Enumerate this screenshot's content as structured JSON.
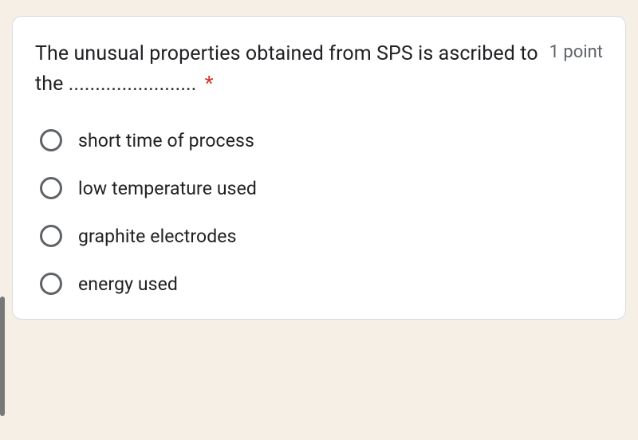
{
  "card": {
    "background_color": "#ffffff",
    "border_color": "#dadce0",
    "border_radius": 12
  },
  "page": {
    "background_color": "#f5efe6"
  },
  "question": {
    "text": "The unusual properties obtained from SPS is ascribed to the ........................",
    "required_marker": "*",
    "required_color": "#d93025",
    "points_label": "1 point",
    "points_color": "#5f6368",
    "text_color": "#202124",
    "fontsize": 25
  },
  "options": [
    {
      "label": "short time of process",
      "selected": false
    },
    {
      "label": "low temperature used",
      "selected": false
    },
    {
      "label": "graphite electrodes",
      "selected": false
    },
    {
      "label": "energy used",
      "selected": false
    }
  ],
  "radio": {
    "border_color": "#5f6368",
    "size": 28
  },
  "option_style": {
    "fontsize": 23,
    "text_color": "#202124"
  }
}
